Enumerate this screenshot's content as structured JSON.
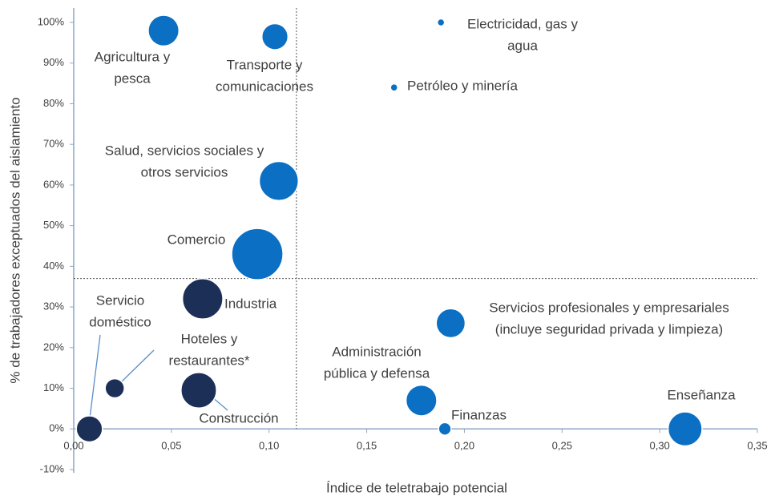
{
  "chart_data": {
    "type": "scatter",
    "x_label": "Índice de teletrabajo potencial",
    "y_label": "% de trabajadores exceptuados del aislamiento",
    "xlim": [
      0,
      0.35
    ],
    "ylim": [
      -10,
      100
    ],
    "xticks": [
      {
        "value": 0,
        "label": "0,00"
      },
      {
        "value": 0.05,
        "label": "0,05"
      },
      {
        "value": 0.1,
        "label": "0,10"
      },
      {
        "value": 0.15,
        "label": "0,15"
      },
      {
        "value": 0.2,
        "label": "0,20"
      },
      {
        "value": 0.25,
        "label": "0,25"
      },
      {
        "value": 0.3,
        "label": "0,30"
      },
      {
        "value": 0.35,
        "label": "0,35"
      }
    ],
    "yticks": [
      {
        "value": -10,
        "label": "-10%"
      },
      {
        "value": 0,
        "label": "0%"
      },
      {
        "value": 10,
        "label": "10%"
      },
      {
        "value": 20,
        "label": "20%"
      },
      {
        "value": 30,
        "label": "30%"
      },
      {
        "value": 40,
        "label": "40%"
      },
      {
        "value": 50,
        "label": "50%"
      },
      {
        "value": 60,
        "label": "60%"
      },
      {
        "value": 70,
        "label": "70%"
      },
      {
        "value": 80,
        "label": "80%"
      },
      {
        "value": 90,
        "label": "90%"
      },
      {
        "value": 100,
        "label": "100%"
      }
    ],
    "labels": [
      [
        "Agricultura y",
        "pesca"
      ],
      [
        "Transporte y",
        "comunicaciones"
      ],
      [
        "Electricidad, gas y",
        "agua"
      ],
      [
        "Petróleo y minería"
      ],
      [
        "Salud, servicios sociales y",
        "otros servicios"
      ],
      [
        "Comercio"
      ],
      [
        "Industria"
      ],
      [
        "Servicio",
        "doméstico"
      ],
      [
        "Hoteles y",
        "restaurantes*"
      ],
      [
        "Construcción"
      ],
      [
        "Servicios profesionales y empresariales",
        "(incluye seguridad privada y limpieza)"
      ],
      [
        "Administración",
        "pública y defensa"
      ],
      [
        "Finanzas"
      ],
      [
        "Enseñanza"
      ]
    ],
    "x": [
      0.046,
      0.103,
      0.188,
      0.164,
      0.105,
      0.094,
      0.066,
      0.008,
      0.021,
      0.064,
      0.193,
      0.178,
      0.19,
      0.313
    ],
    "y": [
      98,
      96.5,
      100,
      84,
      61,
      43,
      32,
      0,
      10,
      9.5,
      26,
      7,
      0,
      0
    ],
    "sizes": [
      36,
      26,
      2,
      2,
      58,
      100,
      62,
      26,
      14,
      48,
      32,
      36,
      6,
      44
    ],
    "colors": [
      "#0b6fc3",
      "#0b6fc3",
      "#0b6fc3",
      "#0b6fc3",
      "#0b6fc3",
      "#0b6fc3",
      "#1b2f57",
      "#1b2f57",
      "#1b2f57",
      "#1b2f57",
      "#0b6fc3",
      "#0b6fc3",
      "#0b6fc3",
      "#0b6fc3"
    ],
    "reference_lines": {
      "x": 0.114,
      "y": 37
    }
  }
}
